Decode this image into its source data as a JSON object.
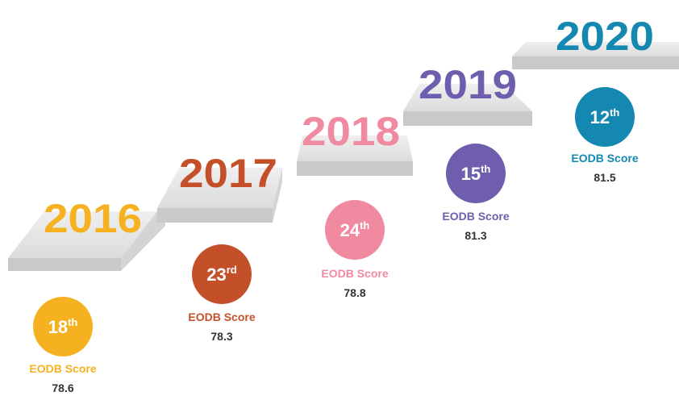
{
  "steps": [
    {
      "year": 2016,
      "rank": 18,
      "suffix": "th",
      "label": "EODB Score",
      "score": 78.6
    },
    {
      "year": 2017,
      "rank": 23,
      "suffix": "rd",
      "label": "EODB Score",
      "score": 78.3
    },
    {
      "year": 2018,
      "rank": 24,
      "suffix": "th",
      "label": "EODB Score",
      "score": 78.8
    },
    {
      "year": 2019,
      "rank": 15,
      "suffix": "th",
      "label": "EODB Score",
      "score": 81.3
    },
    {
      "year": 2020,
      "rank": 12,
      "suffix": "th",
      "label": "EODB Score",
      "score": 81.5
    }
  ]
}
